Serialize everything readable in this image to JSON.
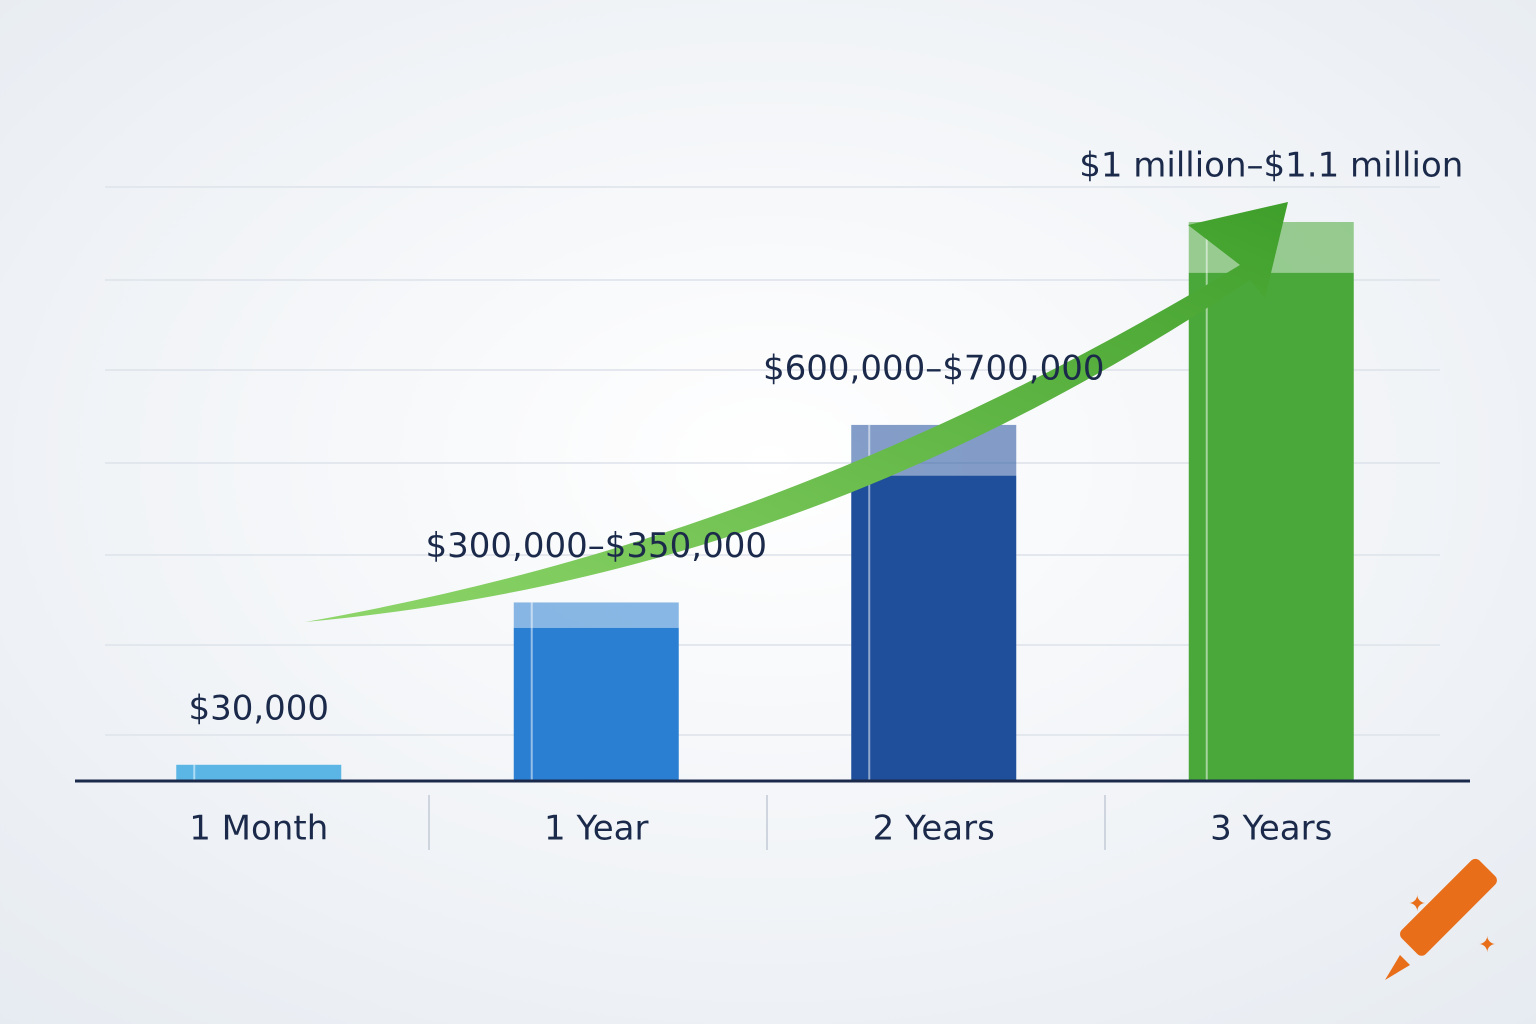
{
  "chart_data": {
    "type": "bar",
    "categories": [
      "1 Month",
      "1 Year",
      "2 Years",
      "3 Years"
    ],
    "values": [
      30000,
      300000,
      600000,
      1000000
    ],
    "high_values": [
      30000,
      350000,
      700000,
      1100000
    ],
    "value_labels": [
      "$30,000",
      "$300,000–$350,000",
      "$600,000–$700,000",
      "$1 million–$1.1 million"
    ],
    "colors": [
      "#5bb6e6",
      "#2b7fd2",
      "#1f4f9a",
      "#4aa83a"
    ]
  }
}
